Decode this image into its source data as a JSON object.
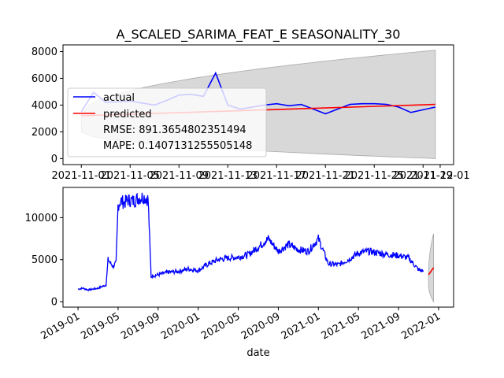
{
  "chart_data": [
    {
      "type": "line",
      "title": "A_SCALED_SARIMA_FEAT_E SEASONALITY_30",
      "xlabel": "",
      "ylabel": "",
      "x_tick_labels": [
        "2021-11-01",
        "2021-11-05",
        "2021-11-09",
        "2021-11-13",
        "2021-11-17",
        "2021-11-21",
        "2021-11-25",
        "2021-11-29",
        "2021-12-01"
      ],
      "y_tick_labels": [
        "0",
        "2000",
        "4000",
        "6000",
        "8000"
      ],
      "ylim": [
        -450,
        8500
      ],
      "grid": false,
      "legend": "upper-left",
      "series": [
        {
          "name": "actual",
          "color": "#0000ff",
          "x": [
            0,
            1,
            2,
            3,
            4,
            5,
            6,
            7,
            8,
            9,
            10,
            11,
            12,
            13,
            14,
            15,
            16,
            17,
            18,
            19,
            20,
            21,
            22,
            23,
            24,
            25,
            26,
            27,
            28,
            29
          ],
          "values": [
            3500,
            4950,
            4200,
            4250,
            4300,
            4150,
            4000,
            4350,
            4750,
            4800,
            4650,
            6400,
            4000,
            3700,
            3850,
            4000,
            4100,
            3950,
            4050,
            3700,
            3350,
            3700,
            4050,
            4100,
            4100,
            4050,
            3850,
            3450,
            3650,
            3850
          ]
        },
        {
          "name": "predicted",
          "color": "#ff0000",
          "x": [
            0,
            29
          ],
          "values": [
            3200,
            4050
          ]
        }
      ],
      "confidence_band": {
        "x": [
          0,
          29
        ],
        "upper": [
          3300,
          8100
        ],
        "lower": [
          2000,
          0
        ]
      },
      "annotations": [
        "RMSE: 891.3654802351494",
        "MAPE: 0.1407131255505148"
      ]
    },
    {
      "type": "line",
      "title": "",
      "xlabel": "date",
      "ylabel": "",
      "x_tick_labels": [
        "2019-01",
        "2019-05",
        "2019-09",
        "2020-01",
        "2020-05",
        "2020-09",
        "2021-01",
        "2021-05",
        "2021-09",
        "2022-01"
      ],
      "y_tick_labels": [
        "0",
        "5000",
        "10000"
      ],
      "ylim": [
        -650,
        13600
      ],
      "grid": false,
      "series_notes": "actual history (blue) ~2019-01 to 2021-11 with forecast (red) and confidence band (grey) at the end",
      "series": [
        {
          "name": "",
          "color": "#0000ff",
          "x_month_index": [
            0,
            0.5,
            1,
            2,
            2.8,
            3.0,
            3.3,
            3.5,
            3.8,
            4.0,
            4.3,
            4.6,
            5,
            5.5,
            6,
            6.5,
            7,
            7.3,
            7.5,
            8,
            9,
            10,
            11,
            12,
            13,
            14,
            15,
            16,
            17,
            18,
            19,
            20,
            21,
            22,
            23,
            24,
            25,
            26,
            27,
            28,
            29,
            30,
            31,
            32,
            33,
            34,
            34.5
          ],
          "values": [
            1500,
            1600,
            1400,
            1600,
            2000,
            5000,
            4500,
            4200,
            4600,
            11500,
            12000,
            11800,
            12100,
            12000,
            12300,
            12500,
            12200,
            3000,
            3100,
            3200,
            3500,
            3600,
            3900,
            3700,
            4500,
            5000,
            5200,
            5300,
            5600,
            6500,
            7500,
            6000,
            6800,
            6200,
            6000,
            7500,
            4500,
            4400,
            5000,
            5800,
            6000,
            5800,
            5600,
            5500,
            5200,
            3800,
            3600
          ]
        }
      ],
      "forecast": {
        "x_month_index": [
          35,
          35.5
        ],
        "values": [
          3200,
          4050
        ],
        "band_upper": [
          3300,
          8100
        ],
        "band_lower": [
          2000,
          0
        ]
      }
    }
  ]
}
